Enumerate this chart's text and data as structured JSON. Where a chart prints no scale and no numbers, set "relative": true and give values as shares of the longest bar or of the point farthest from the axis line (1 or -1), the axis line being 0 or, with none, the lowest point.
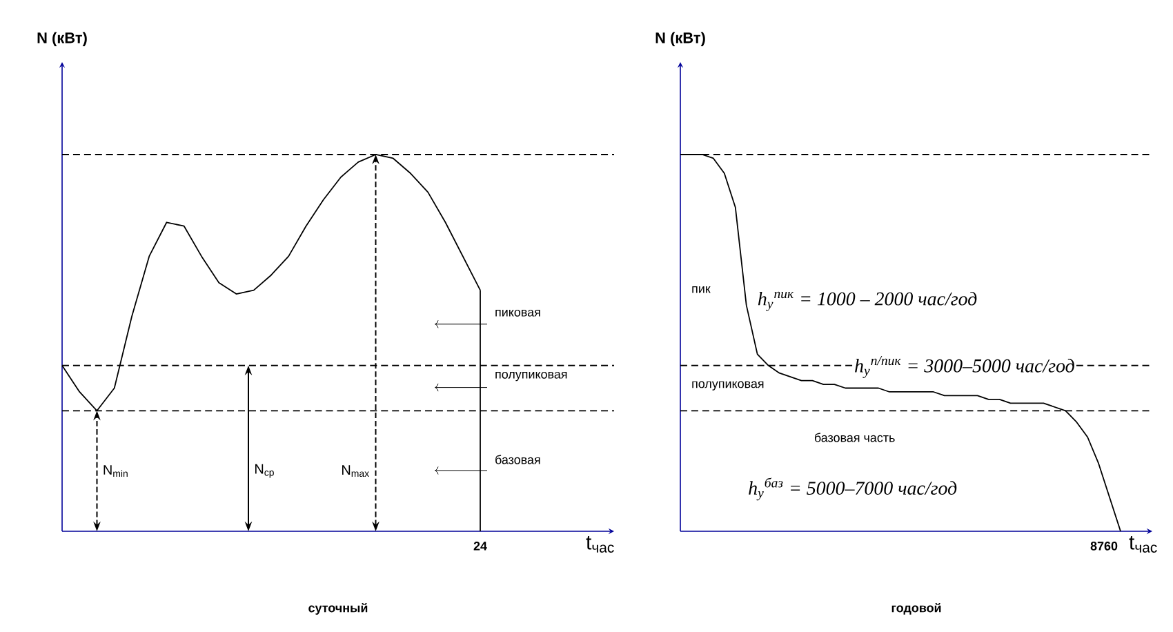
{
  "chart_data": [
    {
      "type": "line",
      "title": "суточный",
      "xlabel": "t$_{час}$",
      "ylabel": "N (кВт)",
      "relative": true,
      "categories": [
        null,
        null,
        null,
        null,
        null,
        null,
        null,
        null,
        null,
        null,
        null,
        null,
        null,
        null,
        null,
        null,
        null,
        null,
        null,
        null,
        null,
        null,
        null,
        null,
        null
      ],
      "series": [
        {
          "color": "#000000",
          "values": [
            0.44,
            0.37,
            0.32,
            0.38,
            0.57,
            0.73,
            0.82,
            0.81,
            0.73,
            0.66,
            0.63,
            0.64,
            0.68,
            0.73,
            0.81,
            0.88,
            0.94,
            0.98,
            1.0,
            0.99,
            0.95,
            0.9,
            0.82,
            0.73,
            0.64
          ]
        }
      ],
      "ref_lines": [
        {
          "axis": "y",
          "value": 0.44,
          "line_style": "dashed"
        },
        {
          "axis": "y",
          "value": 0.32,
          "line_style": "dashed"
        },
        {
          "axis": "y",
          "value": 1.0,
          "line_style": "dashed"
        }
      ],
      "annotations": [
        "N$_{min}$",
        "N$_{ср}$",
        "N$_{max}$",
        "пиковая",
        "полупиковая",
        "базовая",
        "24"
      ]
    },
    {
      "type": "line",
      "title": "годовой",
      "xlabel": "t$_{час}$",
      "ylabel": "N (кВт)",
      "relative": true,
      "categories": [
        null,
        null,
        null,
        null,
        null,
        null,
        null,
        null,
        null,
        null,
        null,
        null,
        null,
        null,
        null,
        null,
        null,
        null,
        null,
        null,
        null,
        null,
        null,
        null,
        null,
        null,
        null,
        null,
        null,
        null,
        null,
        null,
        null,
        null,
        null,
        null,
        null,
        null,
        null,
        null,
        null
      ],
      "series": [
        {
          "color": "#000000",
          "values": [
            1.0,
            1.0,
            1.0,
            0.99,
            0.95,
            0.86,
            0.6,
            0.47,
            0.44,
            0.42,
            0.41,
            0.4,
            0.4,
            0.39,
            0.39,
            0.38,
            0.38,
            0.38,
            0.38,
            0.37,
            0.37,
            0.37,
            0.37,
            0.37,
            0.36,
            0.36,
            0.36,
            0.36,
            0.35,
            0.35,
            0.34,
            0.34,
            0.34,
            0.34,
            0.33,
            0.32,
            0.29,
            0.25,
            0.18,
            0.09,
            0
          ]
        }
      ],
      "ref_lines": [
        {
          "axis": "y",
          "value": 0.44,
          "line_style": "dashed"
        },
        {
          "axis": "y",
          "value": 0.32,
          "line_style": "dashed"
        },
        {
          "axis": "y",
          "value": 1.0,
          "line_style": "dashed"
        }
      ],
      "annotations": [
        "пик",
        "полупиковая",
        "базовая часть",
        "h$_{y}$$^{пик}$ = 1000 – 2000 час/год",
        "h$_{y}$$^{п/пик}$ = 3000–5000 час/год",
        "h$_{y}$$^{баз}$ = 5000–7000 час/год",
        "8760"
      ]
    }
  ]
}
